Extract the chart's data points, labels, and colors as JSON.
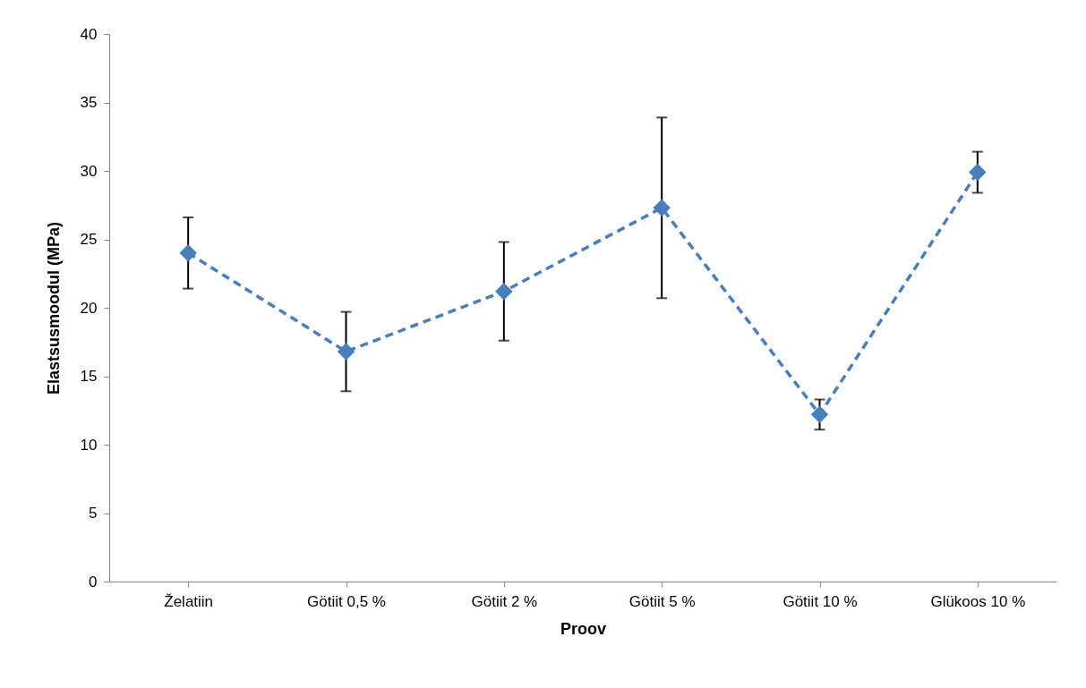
{
  "chart_data": {
    "type": "line",
    "xlabel": "Proov",
    "ylabel": "Elastsusmoodul (MPa)",
    "categories": [
      "Želatiin",
      "Götiit 0,5 %",
      "Götiit 2 %",
      "Götiit 5 %",
      "Götiit 10 %",
      "Glükoos 10 %"
    ],
    "series": [
      {
        "color": "#4a7ebb",
        "values": [
          24.0,
          16.8,
          21.2,
          27.3,
          12.2,
          29.9
        ],
        "errors": [
          2.6,
          2.9,
          3.6,
          6.6,
          1.1,
          1.5
        ]
      }
    ],
    "ylim": [
      0,
      40
    ],
    "yticks": [
      0,
      5,
      10,
      15,
      20,
      25,
      30,
      35,
      40
    ],
    "grid": false,
    "marker": "diamond",
    "line_style": "dashed"
  }
}
